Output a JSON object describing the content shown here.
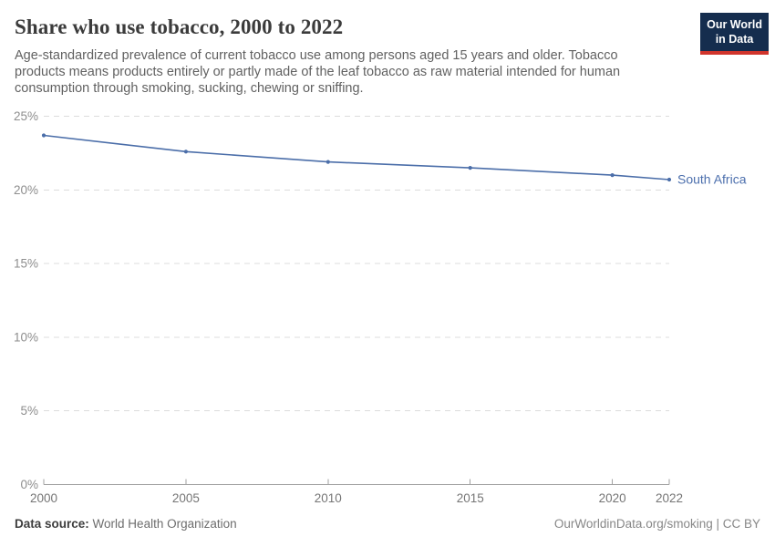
{
  "header": {
    "title": "Share who use tobacco, 2000 to 2022",
    "subtitle": "Age-standardized prevalence of current tobacco use among persons aged 15 years and older. Tobacco products means products entirely or partly made of the leaf tobacco as raw material intended for human consumption through smoking, sucking, chewing or sniffing.",
    "logo": {
      "line1": "Our World",
      "line2": "in Data"
    }
  },
  "chart_data": {
    "type": "line",
    "title": "Share who use tobacco, 2000 to 2022",
    "xlabel": "",
    "ylabel": "",
    "xlim": [
      2000,
      2022
    ],
    "ylim": [
      0,
      25
    ],
    "x_ticks": [
      2000,
      2005,
      2010,
      2015,
      2020,
      2022
    ],
    "y_ticks": [
      0,
      5,
      10,
      15,
      20,
      25
    ],
    "y_tick_suffix": "%",
    "grid": "horizontal-dashed",
    "legend_position": "end-of-line-label",
    "series": [
      {
        "name": "South Africa",
        "x": [
          2000,
          2005,
          2010,
          2015,
          2020,
          2022
        ],
        "values": [
          23.7,
          22.6,
          21.9,
          21.5,
          21.0,
          20.7
        ]
      }
    ]
  },
  "footer": {
    "source_label": "Data source:",
    "source_value": "World Health Organization",
    "link_text": "OurWorldinData.org/smoking | CC BY"
  },
  "colors": {
    "line": "#4b6ea9",
    "entity_label": "#4c6fad",
    "gridline": "#dcdcdc",
    "axis": "#a1a1a1",
    "y_tick_label": "#8e8e8e",
    "x_tick_label": "#757575",
    "logo_navy": "#152d4e",
    "logo_red": "#d0342c"
  }
}
